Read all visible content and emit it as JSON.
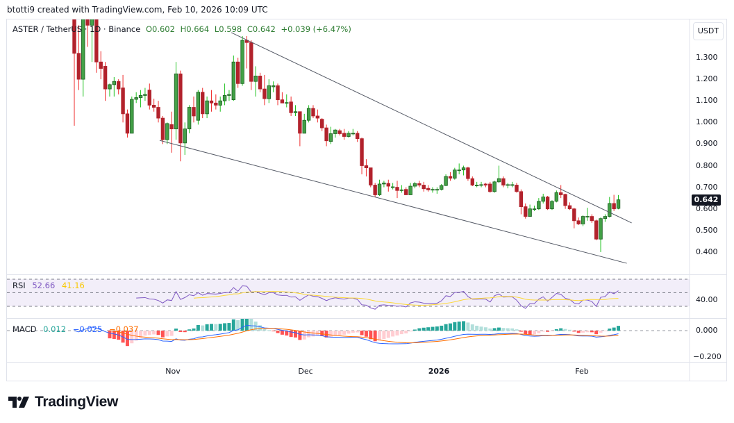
{
  "credit": "btotti9 created with TradingView.com, Feb 10, 2026 10:09 UTC",
  "legend": {
    "symbol": "ASTER / TetherUS · 1D · Binance",
    "open": "O0.602",
    "high": "H0.664",
    "low": "L0.598",
    "close": "C0.642",
    "change": "+0.039 (+6.47%)"
  },
  "rsi": {
    "label": "RSI",
    "value": "52.66",
    "ma": "41.16",
    "tick": "40.00"
  },
  "macd": {
    "label": "MACD",
    "hist": "0.012",
    "macd": "−0.025",
    "signal": "−0.037",
    "ticks": [
      "0.000",
      "−0.200"
    ]
  },
  "price_scale": {
    "currency": "USDT",
    "last": "0.642",
    "ticks": [
      "1.300",
      "1.200",
      "1.100",
      "1.000",
      "0.900",
      "0.800",
      "0.700",
      "0.600",
      "0.500",
      "0.400"
    ]
  },
  "time_axis": [
    "Nov",
    "Dec",
    "2026",
    "Feb"
  ],
  "logo": "TradingView",
  "colors": {
    "up": "#43a047",
    "down": "#b2222c",
    "rsi": "#7e57c2",
    "rsi_ma": "#fdd835",
    "macd": "#2962ff",
    "signal": "#ff6d00"
  },
  "chart_data": {
    "type": "candlestick",
    "title": "ASTER / TetherUS 1D Binance",
    "ylim": [
      0.33,
      1.48
    ],
    "x_labels": {
      "Nov": 22.4,
      "Dec": 52.4,
      "2026": 82.4,
      "Feb": 114.8
    },
    "trendlines": [
      {
        "name": "upper",
        "from": [
          35.5,
          1.416
        ],
        "to": [
          126,
          0.535
        ]
      },
      {
        "name": "lower",
        "from": [
          19.3,
          0.917
        ],
        "to": [
          124.9,
          0.348
        ]
      }
    ],
    "ohlc": [
      [
        1.55,
        1.58,
        0.985,
        1.32
      ],
      [
        1.32,
        1.45,
        1.15,
        1.2
      ],
      [
        1.2,
        1.52,
        1.12,
        1.5
      ],
      [
        1.5,
        1.52,
        1.35,
        1.45
      ],
      [
        1.45,
        1.52,
        1.28,
        1.5
      ],
      [
        1.5,
        1.52,
        1.23,
        1.28
      ],
      [
        1.28,
        1.33,
        1.2,
        1.25
      ],
      [
        1.26,
        1.28,
        1.1,
        1.155
      ],
      [
        1.155,
        1.18,
        1.12,
        1.175
      ],
      [
        1.175,
        1.21,
        1.12,
        1.19
      ],
      [
        1.19,
        1.2,
        1.13,
        1.155
      ],
      [
        1.16,
        1.22,
        1.0,
        1.04
      ],
      [
        1.04,
        1.06,
        0.93,
        0.95
      ],
      [
        0.95,
        1.12,
        0.95,
        1.107
      ],
      [
        1.107,
        1.14,
        1.09,
        1.115
      ],
      [
        1.115,
        1.15,
        1.07,
        1.125
      ],
      [
        1.125,
        1.16,
        1.1,
        1.13
      ],
      [
        1.15,
        1.18,
        1.06,
        1.08
      ],
      [
        1.08,
        1.11,
        1.05,
        1.07
      ],
      [
        1.07,
        1.1,
        1.0,
        1.02
      ],
      [
        1.02,
        1.03,
        0.9,
        0.92
      ],
      [
        0.92,
        1.0,
        0.9,
        0.995
      ],
      [
        0.99,
        1.05,
        0.86,
        0.97
      ],
      [
        0.97,
        1.28,
        0.92,
        1.225
      ],
      [
        1.225,
        1.24,
        0.82,
        0.905
      ],
      [
        0.905,
        1.0,
        0.85,
        0.97
      ],
      [
        0.97,
        1.08,
        0.95,
        1.07
      ],
      [
        1.07,
        1.12,
        1.0,
        1.03
      ],
      [
        1.01,
        1.15,
        0.99,
        1.14
      ],
      [
        1.14,
        1.16,
        1.02,
        1.04
      ],
      [
        1.04,
        1.12,
        1.02,
        1.1
      ],
      [
        1.1,
        1.15,
        1.05,
        1.09
      ],
      [
        1.09,
        1.13,
        1.06,
        1.08
      ],
      [
        1.08,
        1.12,
        1.05,
        1.1
      ],
      [
        1.1,
        1.18,
        1.08,
        1.125
      ],
      [
        1.125,
        1.15,
        1.1,
        1.13
      ],
      [
        1.105,
        1.31,
        1.1,
        1.28
      ],
      [
        1.28,
        1.3,
        1.16,
        1.18
      ],
      [
        1.18,
        1.4,
        1.17,
        1.38
      ],
      [
        1.38,
        1.4,
        1.25,
        1.37
      ],
      [
        1.37,
        1.38,
        1.15,
        1.19
      ],
      [
        1.19,
        1.26,
        1.12,
        1.215
      ],
      [
        1.215,
        1.23,
        1.14,
        1.155
      ],
      [
        1.155,
        1.22,
        1.08,
        1.11
      ],
      [
        1.11,
        1.2,
        1.09,
        1.17
      ],
      [
        1.165,
        1.19,
        1.14,
        1.17
      ],
      [
        1.17,
        1.18,
        1.08,
        1.105
      ],
      [
        1.105,
        1.14,
        1.09,
        1.09
      ],
      [
        1.09,
        1.13,
        1.07,
        1.092
      ],
      [
        1.095,
        1.12,
        1.03,
        1.045
      ],
      [
        1.045,
        1.08,
        1.03,
        1.05
      ],
      [
        1.05,
        1.05,
        0.89,
        0.95
      ],
      [
        0.95,
        1.04,
        0.95,
        1.01
      ],
      [
        1.01,
        1.08,
        1.0,
        1.065
      ],
      [
        1.065,
        1.08,
        1.02,
        1.03
      ],
      [
        1.03,
        1.06,
        1.0,
        1.02
      ],
      [
        1.015,
        1.02,
        0.96,
        0.975
      ],
      [
        0.975,
        0.99,
        0.89,
        0.915
      ],
      [
        0.912,
        0.98,
        0.9,
        0.948
      ],
      [
        0.948,
        0.97,
        0.93,
        0.965
      ],
      [
        0.962,
        0.97,
        0.94,
        0.948
      ],
      [
        0.95,
        0.97,
        0.92,
        0.935
      ],
      [
        0.935,
        0.96,
        0.93,
        0.95
      ],
      [
        0.948,
        0.97,
        0.94,
        0.95
      ],
      [
        0.95,
        0.96,
        0.91,
        0.925
      ],
      [
        0.925,
        0.93,
        0.76,
        0.8
      ],
      [
        0.8,
        0.83,
        0.75,
        0.79
      ],
      [
        0.79,
        0.79,
        0.7,
        0.71
      ],
      [
        0.71,
        0.72,
        0.655,
        0.665
      ],
      [
        0.665,
        0.735,
        0.66,
        0.715
      ],
      [
        0.715,
        0.73,
        0.7,
        0.72
      ],
      [
        0.718,
        0.735,
        0.68,
        0.705
      ],
      [
        0.7,
        0.72,
        0.69,
        0.702
      ],
      [
        0.7,
        0.73,
        0.65,
        0.685
      ],
      [
        0.686,
        0.71,
        0.675,
        0.688
      ],
      [
        0.69,
        0.7,
        0.665,
        0.665
      ],
      [
        0.665,
        0.72,
        0.665,
        0.705
      ],
      [
        0.705,
        0.725,
        0.695,
        0.717
      ],
      [
        0.717,
        0.73,
        0.7,
        0.71
      ],
      [
        0.71,
        0.725,
        0.68,
        0.693
      ],
      [
        0.695,
        0.71,
        0.68,
        0.688
      ],
      [
        0.688,
        0.7,
        0.675,
        0.69
      ],
      [
        0.69,
        0.7,
        0.67,
        0.69
      ],
      [
        0.69,
        0.715,
        0.685,
        0.708
      ],
      [
        0.708,
        0.76,
        0.705,
        0.75
      ],
      [
        0.75,
        0.77,
        0.73,
        0.742
      ],
      [
        0.742,
        0.79,
        0.735,
        0.78
      ],
      [
        0.78,
        0.81,
        0.76,
        0.78
      ],
      [
        0.78,
        0.8,
        0.755,
        0.79
      ],
      [
        0.79,
        0.795,
        0.73,
        0.74
      ],
      [
        0.74,
        0.75,
        0.705,
        0.71
      ],
      [
        0.71,
        0.725,
        0.7,
        0.71
      ],
      [
        0.712,
        0.725,
        0.7,
        0.712
      ],
      [
        0.715,
        0.72,
        0.7,
        0.71
      ],
      [
        0.715,
        0.725,
        0.675,
        0.68
      ],
      [
        0.68,
        0.73,
        0.675,
        0.725
      ],
      [
        0.725,
        0.8,
        0.72,
        0.74
      ],
      [
        0.74,
        0.75,
        0.7,
        0.71
      ],
      [
        0.71,
        0.72,
        0.695,
        0.712
      ],
      [
        0.712,
        0.725,
        0.7,
        0.712
      ],
      [
        0.71,
        0.72,
        0.675,
        0.68
      ],
      [
        0.68,
        0.69,
        0.575,
        0.61
      ],
      [
        0.61,
        0.625,
        0.555,
        0.565
      ],
      [
        0.565,
        0.62,
        0.565,
        0.6
      ],
      [
        0.6,
        0.615,
        0.59,
        0.6
      ],
      [
        0.6,
        0.65,
        0.595,
        0.635
      ],
      [
        0.635,
        0.67,
        0.625,
        0.655
      ],
      [
        0.655,
        0.66,
        0.595,
        0.6
      ],
      [
        0.6,
        0.64,
        0.595,
        0.635
      ],
      [
        0.635,
        0.685,
        0.63,
        0.675
      ],
      [
        0.675,
        0.71,
        0.65,
        0.665
      ],
      [
        0.667,
        0.67,
        0.6,
        0.615
      ],
      [
        0.615,
        0.63,
        0.595,
        0.6
      ],
      [
        0.6,
        0.605,
        0.51,
        0.545
      ],
      [
        0.545,
        0.56,
        0.525,
        0.53
      ],
      [
        0.53,
        0.57,
        0.52,
        0.565
      ],
      [
        0.565,
        0.605,
        0.545,
        0.565
      ],
      [
        0.565,
        0.575,
        0.535,
        0.545
      ],
      [
        0.545,
        0.55,
        0.455,
        0.46
      ],
      [
        0.46,
        0.56,
        0.4,
        0.555
      ],
      [
        0.555,
        0.575,
        0.54,
        0.565
      ],
      [
        0.565,
        0.655,
        0.56,
        0.625
      ],
      [
        0.625,
        0.665,
        0.59,
        0.6
      ],
      [
        0.602,
        0.664,
        0.598,
        0.642
      ]
    ],
    "rsi": {
      "period": 14,
      "ma_period": 14,
      "bands": [
        30,
        50,
        70
      ]
    },
    "macd": {
      "fast": 12,
      "slow": 26,
      "signal": 9
    }
  }
}
